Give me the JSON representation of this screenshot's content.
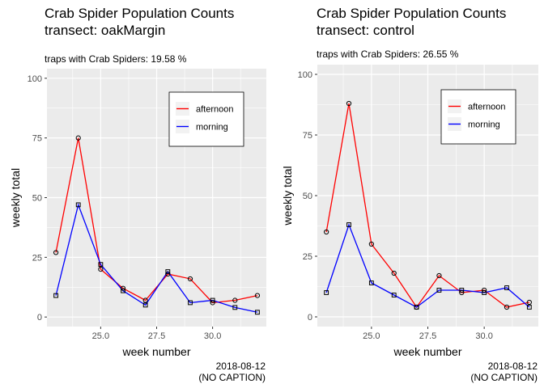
{
  "chart_data": [
    {
      "type": "line",
      "title": "Crab Spider Population Counts",
      "title_line2": "transect: oakMargin",
      "subtitle": "traps with Crab Spiders: 19.58 %",
      "xlabel": "week number",
      "ylabel": "weekly total",
      "xlim": [
        22.6,
        32.4
      ],
      "ylim": [
        -4,
        104
      ],
      "xticks": [
        "25.0",
        "27.5",
        "30.0"
      ],
      "xtick_values": [
        25,
        27.5,
        30
      ],
      "yticks": [
        "0",
        "25",
        "50",
        "75",
        "100"
      ],
      "ytick_values": [
        0,
        25,
        50,
        75,
        100
      ],
      "grid": true,
      "legend_position": "top-right",
      "caption_date": "2018-08-12",
      "caption_note": "(NO CAPTION)",
      "x": [
        23,
        24,
        25,
        26,
        27,
        28,
        29,
        30,
        31,
        32
      ],
      "series": [
        {
          "name": "afternoon",
          "color": "#ff0000",
          "marker": "circle",
          "values": [
            27,
            75,
            20,
            12,
            7,
            18,
            16,
            6,
            7,
            9
          ]
        },
        {
          "name": "morning",
          "color": "#0000ff",
          "marker": "square",
          "values": [
            9,
            47,
            22,
            11,
            5,
            19,
            6,
            7,
            4,
            2
          ]
        }
      ]
    },
    {
      "type": "line",
      "title": "Crab Spider Population Counts",
      "title_line2": "transect: control",
      "subtitle": "traps with Crab Spiders: 26.55 %",
      "xlabel": "week number",
      "ylabel": "weekly total",
      "xlim": [
        22.6,
        32.4
      ],
      "ylim": [
        -4,
        104
      ],
      "xticks": [
        "25.0",
        "27.5",
        "30.0"
      ],
      "xtick_values": [
        25,
        27.5,
        30
      ],
      "yticks": [
        "0",
        "25",
        "50",
        "75",
        "100"
      ],
      "ytick_values": [
        0,
        25,
        50,
        75,
        100
      ],
      "grid": true,
      "legend_position": "top-right",
      "caption_date": "2018-08-12",
      "caption_note": "(NO CAPTION)",
      "x": [
        23,
        24,
        25,
        26,
        27,
        28,
        29,
        30,
        31,
        32
      ],
      "series": [
        {
          "name": "afternoon",
          "color": "#ff0000",
          "marker": "circle",
          "values": [
            35,
            88,
            30,
            18,
            4,
            17,
            10,
            11,
            4,
            6
          ]
        },
        {
          "name": "morning",
          "color": "#0000ff",
          "marker": "square",
          "values": [
            10,
            38,
            14,
            9,
            4,
            11,
            11,
            10,
            12,
            4
          ]
        }
      ]
    }
  ]
}
